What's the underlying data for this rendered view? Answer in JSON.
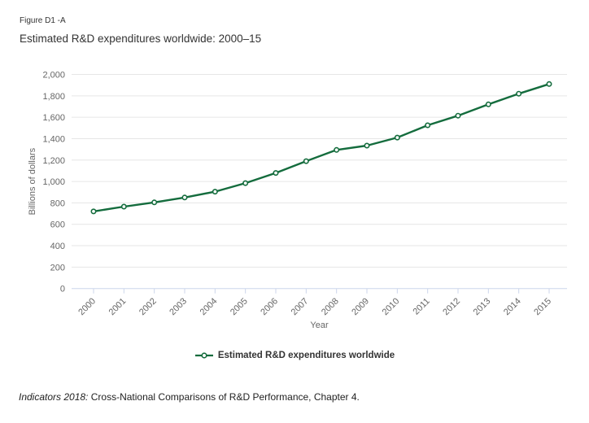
{
  "page": {
    "figure_label": "Figure D1 -A",
    "title": "Estimated R&D expenditures worldwide: 2000–15",
    "footer_italic": "Indicators 2018:",
    "footer_text": "Cross-National Comparisons of R&D Performance, Chapter 4."
  },
  "chart_data": {
    "type": "line",
    "title": "Estimated R&D expenditures worldwide: 2000–15",
    "xlabel": "Year",
    "ylabel": "Billions of dollars",
    "categories": [
      "2000",
      "2001",
      "2002",
      "2003",
      "2004",
      "2005",
      "2006",
      "2007",
      "2008",
      "2009",
      "2010",
      "2011",
      "2012",
      "2013",
      "2014",
      "2015"
    ],
    "series": [
      {
        "name": "Estimated R&D expenditures worldwide",
        "color": "#146c3d",
        "marker": "open-circle",
        "values": [
          720,
          765,
          805,
          850,
          905,
          985,
          1080,
          1190,
          1295,
          1335,
          1410,
          1525,
          1615,
          1720,
          1820,
          1910
        ]
      }
    ],
    "ylim": [
      0,
      2000
    ],
    "ytick_step": 200,
    "grid": true,
    "legend_position": "bottom-center",
    "colors": {
      "grid": "#e6e6e6",
      "axis": "#ccd6eb",
      "tick_label": "#666666",
      "axis_title": "#666666",
      "legend_text": "#333333",
      "title_text": "#333333"
    }
  }
}
